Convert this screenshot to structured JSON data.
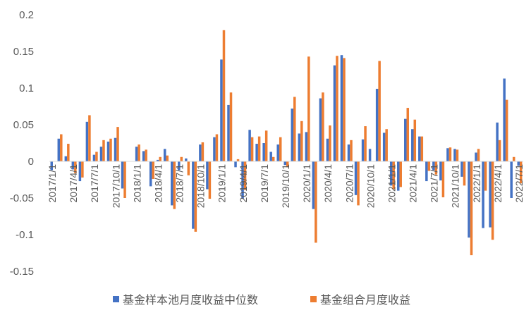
{
  "chart_data": {
    "type": "bar",
    "title": "",
    "xlabel": "",
    "ylabel": "",
    "ylim": [
      -0.15,
      0.2
    ],
    "yticks": [
      "-0.15",
      "-0.1",
      "-0.05",
      "0",
      "0.05",
      "0.1",
      "0.15",
      "0.2"
    ],
    "grid": false,
    "legend_position": "bottom",
    "colors": {
      "median": "#4472C4",
      "portfolio": "#ED7D31"
    },
    "xtick_labels": [
      "2017/1/1",
      "2017/4/1",
      "2017/7/1",
      "2017/10/1",
      "2018/1/1",
      "2018/4/1",
      "2018/7/1",
      "2018/10/1",
      "2019/1/1",
      "2019/4/1",
      "2019/7/1",
      "2019/10/1",
      "2020/1/1",
      "2020/4/1",
      "2020/7/1",
      "2020/10/1",
      "2021/1/1",
      "2021/4/1",
      "2021/7/1",
      "2021/10/1",
      "2022/1/1",
      "2022/4/1",
      "2022/7/1"
    ],
    "categories": [
      "2017/1/1",
      "2017/2/1",
      "2017/3/1",
      "2017/4/1",
      "2017/5/1",
      "2017/6/1",
      "2017/7/1",
      "2017/8/1",
      "2017/9/1",
      "2017/10/1",
      "2017/11/1",
      "2017/12/1",
      "2018/1/1",
      "2018/2/1",
      "2018/3/1",
      "2018/4/1",
      "2018/5/1",
      "2018/6/1",
      "2018/7/1",
      "2018/8/1",
      "2018/9/1",
      "2018/10/1",
      "2018/11/1",
      "2018/12/1",
      "2019/1/1",
      "2019/2/1",
      "2019/3/1",
      "2019/4/1",
      "2019/5/1",
      "2019/6/1",
      "2019/7/1",
      "2019/8/1",
      "2019/9/1",
      "2019/10/1",
      "2019/11/1",
      "2019/12/1",
      "2020/1/1",
      "2020/2/1",
      "2020/3/1",
      "2020/4/1",
      "2020/5/1",
      "2020/6/1",
      "2020/7/1",
      "2020/8/1",
      "2020/9/1",
      "2020/10/1",
      "2020/11/1",
      "2020/12/1",
      "2021/1/1",
      "2021/2/1",
      "2021/3/1",
      "2021/4/1",
      "2021/5/1",
      "2021/6/1",
      "2021/7/1",
      "2021/8/1",
      "2021/9/1",
      "2021/10/1",
      "2021/11/1",
      "2021/12/1",
      "2022/1/1",
      "2022/2/1",
      "2022/3/1",
      "2022/4/1",
      "2022/5/1",
      "2022/6/1",
      "2022/7/1"
    ],
    "series": [
      {
        "name": "基金样本池月度收益中位数",
        "values": [
          -0.012,
          0.031,
          0.007,
          -0.011,
          -0.027,
          0.054,
          0.009,
          0.02,
          0.027,
          0.032,
          -0.037,
          0.0,
          0.02,
          0.014,
          -0.034,
          0.002,
          0.017,
          -0.06,
          -0.012,
          0.004,
          -0.092,
          0.023,
          -0.038,
          0.033,
          0.139,
          0.077,
          -0.008,
          -0.051,
          0.043,
          0.024,
          0.025,
          0.013,
          0.023,
          -0.005,
          0.072,
          0.038,
          0.04,
          -0.065,
          0.086,
          0.031,
          0.131,
          0.145,
          0.023,
          -0.046,
          0.03,
          0.017,
          0.099,
          0.039,
          -0.033,
          -0.04,
          0.058,
          0.044,
          0.034,
          -0.027,
          -0.012,
          -0.026,
          0.018,
          0.017,
          -0.021,
          -0.104,
          0.012,
          -0.091,
          -0.09,
          0.053,
          0.113,
          -0.05,
          -0.006
        ]
      },
      {
        "name": "基金组合月度收益",
        "values": [
          0.0,
          0.037,
          0.024,
          -0.016,
          -0.022,
          0.063,
          0.013,
          0.029,
          0.031,
          0.047,
          -0.05,
          0.0,
          0.023,
          0.016,
          -0.024,
          0.006,
          0.008,
          -0.065,
          0.006,
          -0.019,
          -0.096,
          0.026,
          -0.051,
          0.037,
          0.179,
          0.094,
          0.003,
          -0.039,
          0.033,
          0.034,
          0.042,
          0.006,
          0.033,
          -0.008,
          0.088,
          0.055,
          0.143,
          -0.111,
          0.094,
          0.049,
          0.144,
          0.141,
          0.029,
          -0.06,
          0.048,
          0.0,
          0.137,
          0.044,
          -0.038,
          -0.035,
          0.073,
          0.057,
          0.034,
          -0.013,
          -0.018,
          -0.049,
          0.019,
          0.016,
          -0.033,
          -0.128,
          0.017,
          -0.04,
          -0.107,
          0.029,
          0.084,
          0.006,
          -0.03
        ]
      }
    ]
  }
}
